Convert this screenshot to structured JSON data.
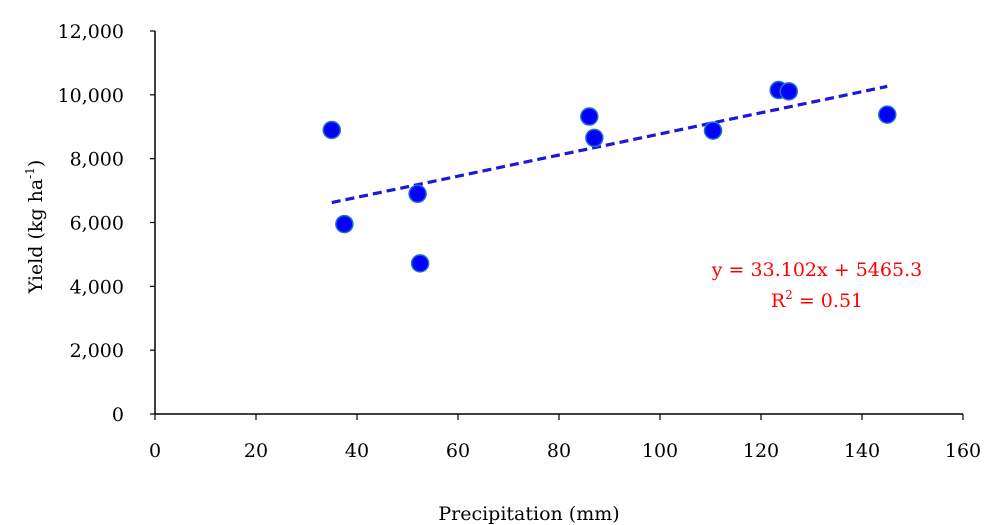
{
  "chart_data": {
    "type": "scatter",
    "title": "",
    "xlabel": "Precipitation (mm)",
    "ylabel": "Yield (kg ha-1)",
    "ylabel_parts": {
      "main": "Yield (kg ha",
      "sup": "-1",
      "end": ")"
    },
    "xlim": [
      0,
      160
    ],
    "ylim": [
      0,
      12000
    ],
    "x_ticks": [
      0,
      20,
      40,
      60,
      80,
      100,
      120,
      140,
      160
    ],
    "y_ticks": [
      0,
      2000,
      4000,
      6000,
      8000,
      10000,
      12000
    ],
    "x_tick_labels": [
      "0",
      "20",
      "40",
      "60",
      "80",
      "100",
      "120",
      "140",
      "160"
    ],
    "y_tick_labels": [
      "0",
      "2,000",
      "4,000",
      "6,000",
      "8,000",
      "10,000",
      "12,000"
    ],
    "grid": false,
    "points": [
      {
        "x": 35.0,
        "y": 8900
      },
      {
        "x": 37.5,
        "y": 5950
      },
      {
        "x": 52.0,
        "y": 6900
      },
      {
        "x": 52.5,
        "y": 4720
      },
      {
        "x": 86.0,
        "y": 9320
      },
      {
        "x": 87.0,
        "y": 8650
      },
      {
        "x": 110.5,
        "y": 8880
      },
      {
        "x": 123.5,
        "y": 10150
      },
      {
        "x": 125.5,
        "y": 10110
      },
      {
        "x": 145.0,
        "y": 9380
      }
    ],
    "trendline": {
      "type": "linear",
      "slope": 33.102,
      "intercept": 5465.3,
      "x_range": [
        35,
        145
      ],
      "equation": "y = 33.102x + 5465.3",
      "r2_label": "R",
      "r2_sup": "2",
      "r2_value": " = 0.51"
    },
    "colors": {
      "marker_fill": "#0000ff",
      "marker_stroke": "#1f6fd0",
      "trendline": "#1a1ad6",
      "annotation": "#ff0000",
      "axis": "#000000"
    }
  }
}
